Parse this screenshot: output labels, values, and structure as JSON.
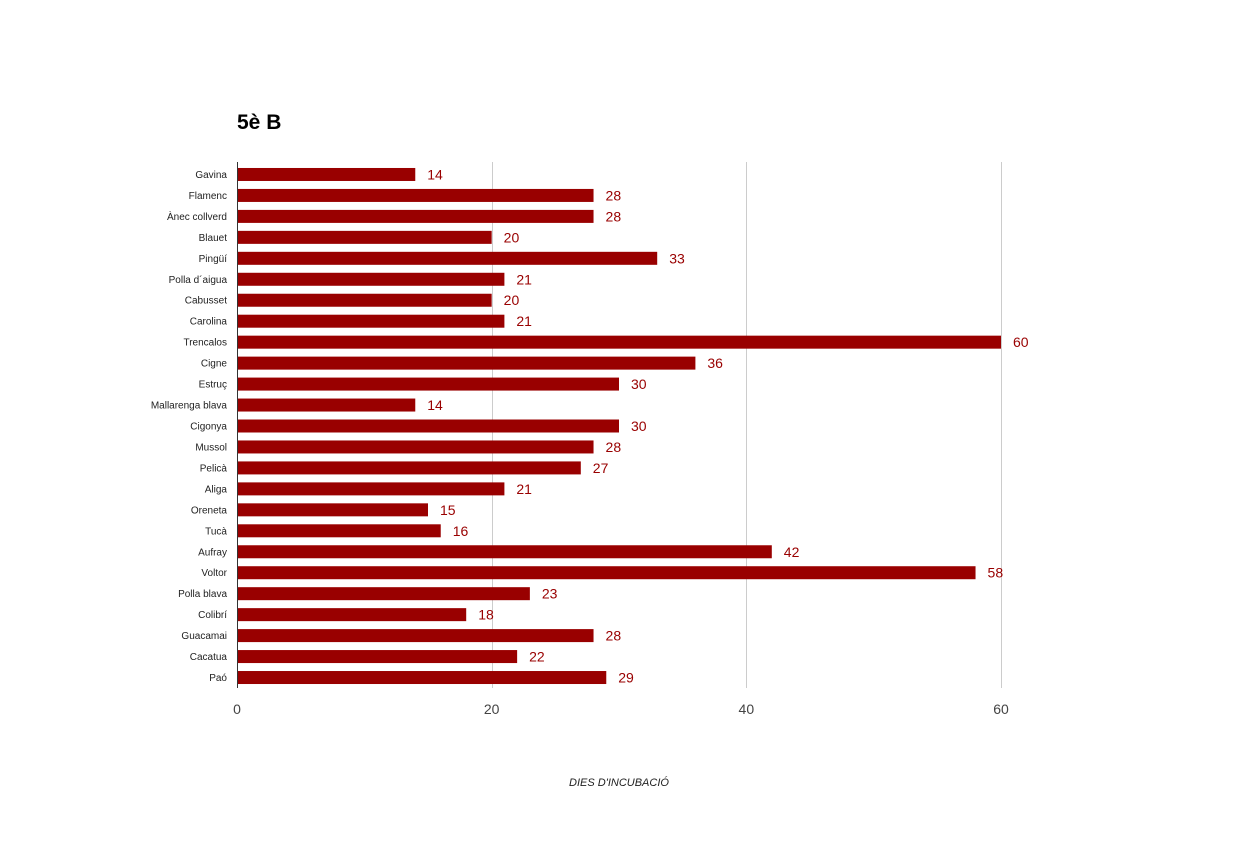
{
  "chart_data": {
    "type": "bar",
    "orientation": "horizontal",
    "title": "5è B",
    "xlabel": "DIES D'INCUBACIÓ",
    "ylabel": "",
    "categories": [
      "Gavina",
      "Flamenc",
      "Ànec collverd",
      "Blauet",
      "Pingüí",
      "Polla d´aigua",
      "Cabusset",
      "Carolina",
      "Trencalos",
      "Cigne",
      "Estruç",
      "Mallarenga blava",
      "Cigonya",
      "Mussol",
      "Pelicà",
      "Aliga",
      "Oreneta",
      "Tucà",
      "Aufray",
      "Voltor",
      "Polla blava",
      "Colibrí",
      "Guacamai",
      "Cacatua",
      "Paó"
    ],
    "values": [
      14,
      28,
      28,
      20,
      33,
      21,
      20,
      21,
      60,
      36,
      30,
      14,
      30,
      28,
      27,
      21,
      15,
      16,
      42,
      58,
      23,
      18,
      28,
      22,
      29
    ],
    "xlim": [
      0,
      60
    ],
    "xticks": [
      0,
      20,
      40,
      60
    ],
    "grid": true,
    "legend": "none",
    "bar_color": "#990000",
    "data_label_color": "#990000"
  }
}
